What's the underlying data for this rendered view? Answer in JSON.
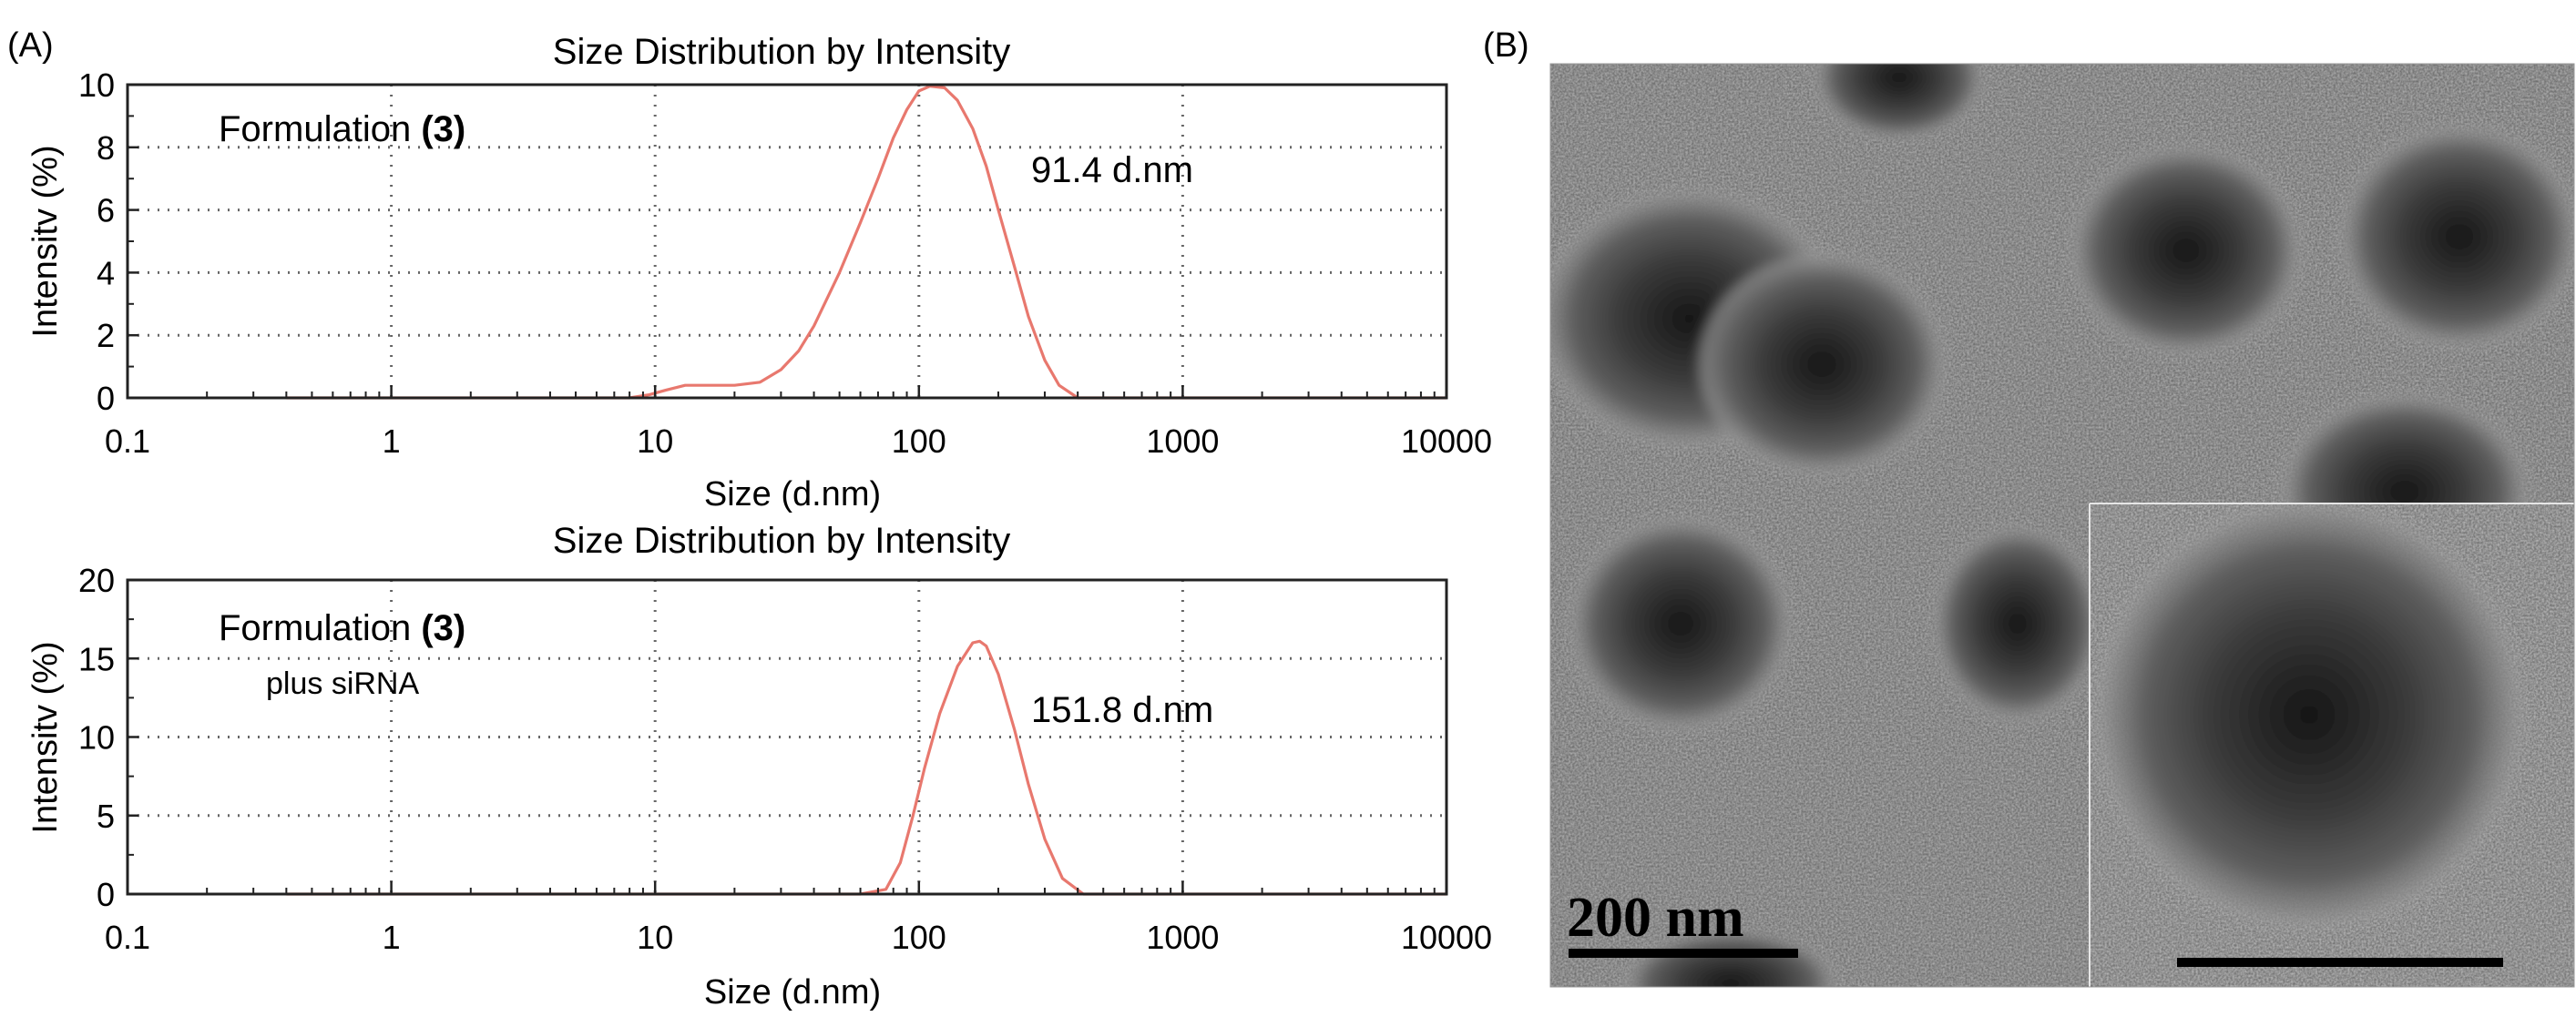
{
  "panels": {
    "a_label": "(A)",
    "b_label": "(B)"
  },
  "chart_data": [
    {
      "type": "line",
      "title": "Size Distribution by Intensity",
      "xlabel": "Size (d.nm)",
      "ylabel": "Intensitv (%)",
      "xscale": "log",
      "xlim": [
        0.1,
        10000
      ],
      "ylim": [
        0,
        10
      ],
      "xticks": [
        0.1,
        1,
        10,
        100,
        1000,
        10000
      ],
      "xtick_labels": [
        "0.1",
        "1",
        "10",
        "100",
        "1000",
        "10000"
      ],
      "yticks": [
        0,
        2,
        4,
        6,
        8,
        10
      ],
      "ytick_labels": [
        "0",
        "2",
        "4",
        "6",
        "8",
        "10"
      ],
      "grid": true,
      "annotation": "Formulation",
      "annotation_bold": "(3)",
      "annotation_line2": "",
      "peak_label": "91.4 d.nm",
      "series": [
        {
          "name": "Formulation (3)",
          "color": "#e8786e",
          "x": [
            0.4,
            1,
            8,
            9.5,
            11,
            13,
            16,
            20,
            25,
            30,
            35,
            40,
            50,
            60,
            70,
            80,
            90,
            100,
            110,
            125,
            140,
            160,
            180,
            200,
            230,
            260,
            300,
            340,
            400,
            500,
            1000,
            10000
          ],
          "y": [
            0,
            0,
            0,
            0.1,
            0.25,
            0.4,
            0.4,
            0.4,
            0.5,
            0.9,
            1.5,
            2.3,
            4.0,
            5.6,
            7.0,
            8.3,
            9.2,
            9.8,
            9.95,
            9.9,
            9.5,
            8.6,
            7.4,
            6.0,
            4.2,
            2.6,
            1.2,
            0.4,
            0,
            0,
            0,
            0
          ]
        }
      ]
    },
    {
      "type": "line",
      "title": "Size Distribution by Intensity",
      "xlabel": "Size (d.nm)",
      "ylabel": "Intensitv (%)",
      "xscale": "log",
      "xlim": [
        0.1,
        10000
      ],
      "ylim": [
        0,
        20
      ],
      "xticks": [
        0.1,
        1,
        10,
        100,
        1000,
        10000
      ],
      "xtick_labels": [
        "0.1",
        "1",
        "10",
        "100",
        "1000",
        "10000"
      ],
      "yticks": [
        0,
        5,
        10,
        15,
        20
      ],
      "ytick_labels": [
        "0",
        "5",
        "10",
        "15",
        "20"
      ],
      "grid": true,
      "annotation": "Formulation",
      "annotation_bold": "(3)",
      "annotation_line2": "plus siRNA",
      "peak_label": "151.8 d.nm",
      "series": [
        {
          "name": "Formulation (3) plus siRNA",
          "color": "#e8786e",
          "x": [
            0.4,
            1,
            10,
            60,
            75,
            85,
            95,
            105,
            120,
            140,
            160,
            170,
            180,
            200,
            230,
            260,
            300,
            350,
            420,
            500,
            1000,
            10000
          ],
          "y": [
            0,
            0,
            0,
            0,
            0.3,
            2.0,
            5.0,
            8.0,
            11.5,
            14.5,
            16.0,
            16.1,
            15.8,
            14.0,
            10.5,
            7.0,
            3.5,
            1.0,
            0,
            0,
            0,
            0
          ]
        }
      ]
    }
  ],
  "micrograph": {
    "scale_label": "200 nm"
  }
}
